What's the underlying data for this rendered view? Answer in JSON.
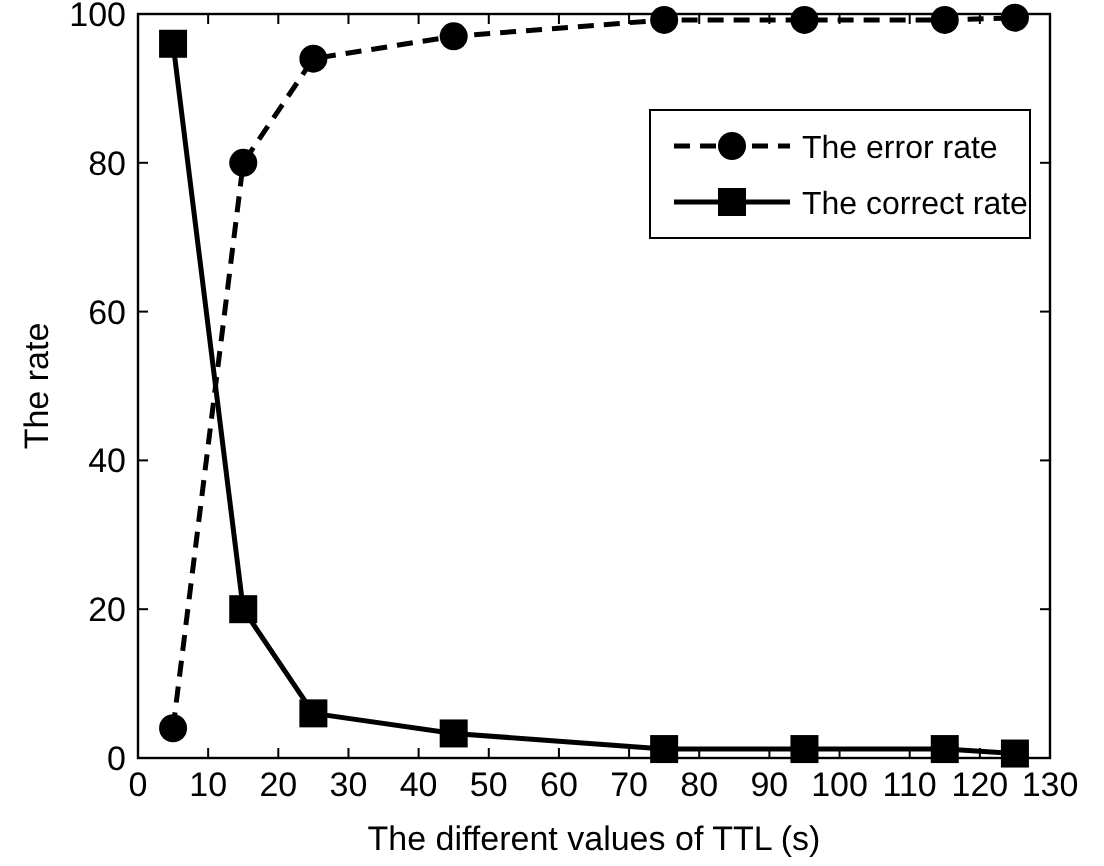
{
  "chart_data": {
    "type": "line",
    "xlabel": "The different values of TTL (s)",
    "ylabel": "The rate",
    "x": [
      5,
      15,
      25,
      45,
      75,
      95,
      115,
      125
    ],
    "series": [
      {
        "name": "The error rate",
        "color": "#000000",
        "values": [
          4,
          80,
          94,
          97,
          99.2,
          99.2,
          99.2,
          99.5
        ],
        "marker": "circle",
        "line_style": "dashed"
      },
      {
        "name": "The correct rate",
        "color": "#000000",
        "values": [
          96,
          20,
          6,
          3.3,
          1.2,
          1.2,
          1.2,
          0.6
        ],
        "marker": "square",
        "line_style": "solid"
      }
    ],
    "xlim": [
      0,
      130
    ],
    "xticks": [
      0,
      10,
      20,
      30,
      40,
      50,
      60,
      70,
      80,
      90,
      100,
      110,
      120,
      130
    ],
    "ylim": [
      0,
      100
    ],
    "yticks": [
      0,
      20,
      40,
      60,
      80,
      100
    ],
    "grid": false,
    "legend": "top right"
  }
}
